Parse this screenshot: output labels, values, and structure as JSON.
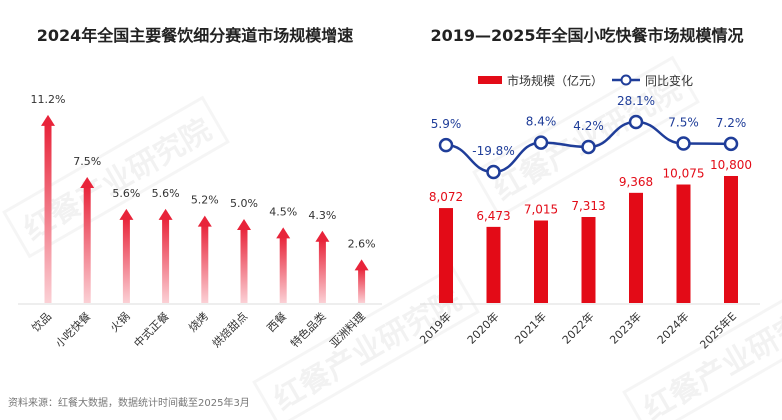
{
  "chart_data": [
    {
      "type": "bar",
      "title": "2024年全国主要餐饮细分赛道市场规模增速",
      "categories": [
        "饮品",
        "小吃快餐",
        "火锅",
        "中式正餐",
        "烧烤",
        "烘焙甜点",
        "西餐",
        "特色品类",
        "亚洲料理"
      ],
      "values": [
        11.2,
        7.5,
        5.6,
        5.6,
        5.2,
        5.0,
        4.5,
        4.3,
        2.6
      ],
      "labels": [
        "11.2%",
        "7.5%",
        "5.6%",
        "5.6%",
        "5.2%",
        "5.0%",
        "4.5%",
        "4.3%",
        "2.6%"
      ],
      "bar_style": "gradient arrow",
      "color": "#e8243a"
    },
    {
      "type": "bar+line",
      "title": "2019—2025年全国小吃快餐市场规模情况",
      "categories": [
        "2019年",
        "2020年",
        "2021年",
        "2022年",
        "2023年",
        "2024年",
        "2025年E"
      ],
      "legend_position": "top",
      "series": [
        {
          "name": "市场规模（亿元）",
          "type": "bar",
          "color": "#e30b17",
          "values": [
            8072,
            6473,
            7015,
            7313,
            9368,
            10075,
            10800
          ],
          "labels": [
            "8,072",
            "6,473",
            "7,015",
            "7,313",
            "9,368",
            "10,075",
            "10,800"
          ]
        },
        {
          "name": "同比变化",
          "type": "line",
          "color": "#1f3d99",
          "values": [
            5.9,
            -19.8,
            8.4,
            4.2,
            28.1,
            7.5,
            7.2
          ],
          "labels": [
            "5.9%",
            "-19.8%",
            "8.4%",
            "4.2%",
            "28.1%",
            "7.5%",
            "7.2%"
          ]
        }
      ]
    }
  ],
  "footer": "资料来源：红餐大数据，数据统计时间截至2025年3月",
  "watermark": "红餐产业研究院"
}
